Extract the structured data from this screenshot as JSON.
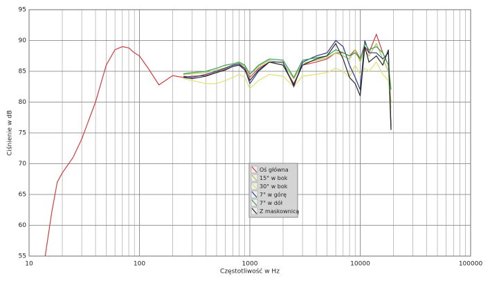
{
  "chart_data": {
    "type": "line",
    "xlabel": "Częstotliwość w Hz",
    "ylabel": "Ciśnienie w dB",
    "x": [
      14,
      16,
      18,
      20,
      25,
      30,
      40,
      50,
      60,
      70,
      80,
      90,
      100,
      120,
      150,
      200,
      250,
      300,
      400,
      500,
      600,
      700,
      800,
      900,
      1000,
      1200,
      1500,
      2000,
      2500,
      3000,
      4000,
      5000,
      6000,
      7000,
      8000,
      9000,
      10000,
      11000,
      12000,
      14000,
      16000,
      18000,
      19000
    ],
    "series": [
      {
        "name": "Oś główna",
        "color": "#d03c3c",
        "values": [
          55,
          62,
          67,
          68.5,
          71,
          74,
          80,
          86,
          88.5,
          89,
          88.8,
          88,
          87.5,
          85.5,
          82.8,
          84.3,
          84,
          84.2,
          84.3,
          84.8,
          85.3,
          85.8,
          86,
          85.5,
          84,
          85.5,
          86.5,
          86,
          83,
          86,
          86.5,
          87,
          88,
          88,
          87.5,
          88.5,
          87,
          89,
          88,
          91,
          88,
          86,
          75.5
        ]
      },
      {
        "name": "15° w bok",
        "color": "#a8c848",
        "values": [
          null,
          null,
          null,
          null,
          null,
          null,
          null,
          null,
          null,
          null,
          null,
          null,
          null,
          null,
          null,
          null,
          84.5,
          84.6,
          84.8,
          85.2,
          85.6,
          86,
          86.3,
          85.8,
          84.5,
          85.8,
          86.8,
          86.3,
          83.8,
          86.3,
          86.8,
          87.2,
          88,
          87.5,
          87,
          88.5,
          86.5,
          88.5,
          87.5,
          89.5,
          87,
          85,
          80
        ]
      },
      {
        "name": "30° w bok",
        "color": "#e0e070",
        "values": [
          null,
          null,
          null,
          null,
          null,
          null,
          null,
          null,
          null,
          null,
          null,
          null,
          null,
          null,
          null,
          null,
          83.8,
          83.5,
          83,
          83,
          83.5,
          84,
          84.5,
          84,
          82.2,
          83.5,
          84.5,
          84.2,
          82.5,
          84.2,
          84.5,
          84.8,
          85.5,
          85,
          84,
          86,
          84.5,
          85.5,
          85,
          86.5,
          84.5,
          83.5,
          79
        ]
      },
      {
        "name": "7° w górę",
        "color": "#303888",
        "values": [
          null,
          null,
          null,
          null,
          null,
          null,
          null,
          null,
          null,
          null,
          null,
          null,
          null,
          null,
          null,
          null,
          84.2,
          84,
          84.5,
          85,
          85.5,
          86,
          86.2,
          85.5,
          83,
          85,
          86.5,
          86.5,
          82.5,
          86.5,
          87.5,
          88,
          90,
          89,
          86,
          84,
          82,
          90,
          88,
          88,
          87,
          88,
          76
        ]
      },
      {
        "name": "7° w dół",
        "color": "#3c9a58",
        "values": [
          null,
          null,
          null,
          null,
          null,
          null,
          null,
          null,
          null,
          null,
          null,
          null,
          null,
          null,
          null,
          null,
          84.6,
          84.8,
          85,
          85.5,
          86,
          86.2,
          86.5,
          86,
          84.5,
          86,
          87,
          86.8,
          84,
          86.8,
          87.2,
          87.5,
          88.5,
          88,
          87.5,
          88,
          87,
          89.5,
          88.5,
          89,
          88,
          86,
          82
        ]
      },
      {
        "name": "Z maskownicą",
        "color": "#202828",
        "values": [
          null,
          null,
          null,
          null,
          null,
          null,
          null,
          null,
          null,
          null,
          null,
          null,
          null,
          null,
          null,
          null,
          84,
          83.8,
          84.2,
          84.8,
          85.2,
          85.8,
          86,
          85.2,
          83.5,
          85.2,
          86.5,
          86,
          82.8,
          86,
          87,
          87.5,
          89.5,
          87,
          84,
          83,
          81,
          89,
          86.5,
          87.5,
          86,
          88.5,
          75.5
        ]
      }
    ],
    "xlog": true,
    "xlim": [
      10,
      100000
    ],
    "xticks": [
      10,
      100,
      1000,
      10000,
      100000
    ],
    "xminorticks": [
      20,
      30,
      40,
      50,
      60,
      70,
      80,
      90,
      200,
      300,
      400,
      500,
      600,
      700,
      800,
      900,
      2000,
      3000,
      4000,
      5000,
      6000,
      7000,
      8000,
      9000,
      20000,
      30000,
      40000,
      50000,
      60000,
      70000,
      80000,
      90000
    ],
    "ylim": [
      55,
      95
    ],
    "yticks": [
      55,
      60,
      65,
      70,
      75,
      80,
      85,
      90,
      95
    ],
    "grid": true,
    "legend": "center"
  }
}
